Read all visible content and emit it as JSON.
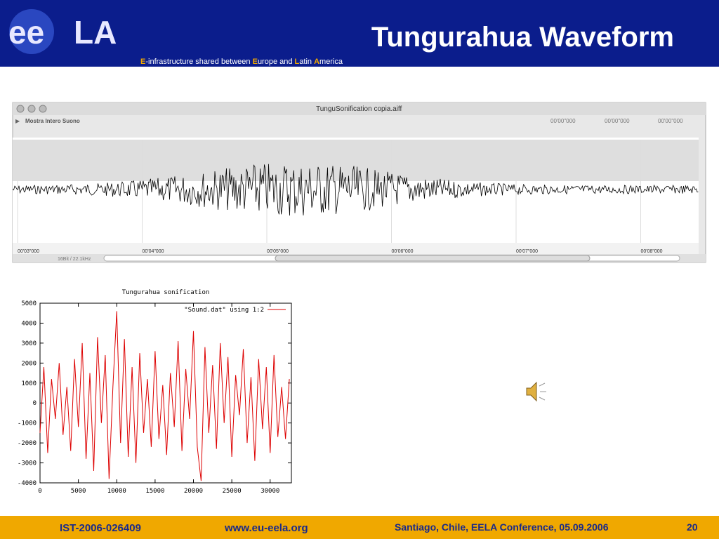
{
  "header": {
    "title": "Tungurahua Waveform",
    "logo_left": "ee",
    "logo_right": "LA",
    "subtitle": [
      "E",
      "-infrastructure shared between ",
      "E",
      "urope and ",
      "L",
      "atin ",
      "A",
      "merica"
    ]
  },
  "window": {
    "title": "TunguSonification copia.aiff",
    "toolbar_label": "Mostra Intero Suono",
    "time_fields": [
      "00'00\"000",
      "00'00\"000",
      "00'00\"000"
    ],
    "time_labels": [
      "00'03\"000",
      "00'04\"000",
      "00'05\"000",
      "00'06\"000",
      "00'07\"000",
      "00'08\"000"
    ],
    "status": "16Bit / 22.1kHz"
  },
  "chart_data": {
    "type": "line",
    "title": "Tungurahua sonification",
    "x": [
      0,
      500,
      1000,
      1500,
      2000,
      2500,
      3000,
      3500,
      4000,
      4500,
      5000,
      5500,
      6000,
      6500,
      7000,
      7500,
      8000,
      8500,
      9000,
      9500,
      10000,
      10500,
      11000,
      11500,
      12000,
      12500,
      13000,
      13500,
      14000,
      14500,
      15000,
      15500,
      16000,
      16500,
      17000,
      17500,
      18000,
      18500,
      19000,
      19500,
      20000,
      20500,
      21000,
      21500,
      22000,
      22500,
      23000,
      23500,
      24000,
      24500,
      25000,
      25500,
      26000,
      26500,
      27000,
      27500,
      28000,
      28500,
      29000,
      29500,
      30000,
      30500,
      31000,
      31500,
      32000,
      32500
    ],
    "series": [
      {
        "name": "\"Sound.dat\" using 1:2",
        "color": "#dd0000",
        "values": [
          -1500,
          1800,
          -2500,
          1200,
          -800,
          2000,
          -1600,
          800,
          -2400,
          2200,
          -1200,
          3000,
          -2800,
          1500,
          -3400,
          3300,
          -1000,
          2400,
          -3800,
          800,
          4600,
          -2000,
          3200,
          -2700,
          1800,
          -3000,
          2500,
          -1500,
          1200,
          -2200,
          2600,
          -1800,
          900,
          -2600,
          1500,
          -1200,
          3100,
          -2400,
          1700,
          -800,
          3600,
          -2200,
          -3900,
          2800,
          -1500,
          1900,
          -2300,
          3000,
          -1000,
          2300,
          -2700,
          1400,
          -600,
          2700,
          -2000,
          1300,
          -2900,
          2200,
          -1300,
          1800,
          -2500,
          2400,
          -1700,
          800,
          -1800,
          1200
        ]
      }
    ],
    "xlim": [
      0,
      32768
    ],
    "ylim": [
      -4000,
      5000
    ],
    "xticks": [
      0,
      5000,
      10000,
      15000,
      20000,
      25000,
      30000
    ],
    "yticks": [
      -4000,
      -3000,
      -2000,
      -1000,
      0,
      1000,
      2000,
      3000,
      4000,
      5000
    ]
  },
  "footer": {
    "project": "IST-2006-026409",
    "url": "www.eu-eela.org",
    "conference": "Santiago, Chile, EELA Conference, 05.09.2006",
    "page": "20"
  }
}
